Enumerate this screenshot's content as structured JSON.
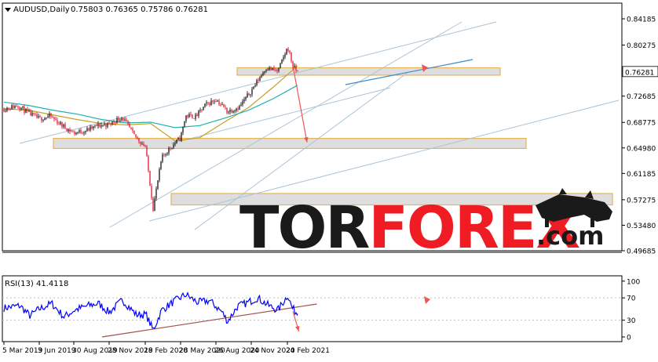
{
  "header": {
    "symbol_line": "AUDUSD,Daily",
    "ohlc_line": "0.75803 0.76365 0.75786 0.76281"
  },
  "price_panel": {
    "current_price_label": "0.76281",
    "y_ticks": [
      "0.84185",
      "0.80275",
      "0.76281",
      "0.72685",
      "0.68775",
      "0.64980",
      "0.61185",
      "0.57275",
      "0.53480",
      "0.49685"
    ]
  },
  "rsi_panel": {
    "label": "RSI(13) 41.4118",
    "y_ticks": [
      "100",
      "70",
      "30",
      "0"
    ]
  },
  "x_axis": {
    "ticks": [
      "5 Mar 2019",
      "3 Jun 2019",
      "30 Aug 2019",
      "28 Nov 2019",
      "28 Feb 2020",
      "28 May 2020",
      "26 Aug 2020",
      "24 Nov 2020",
      "24 Feb 2021"
    ]
  },
  "watermark": {
    "text_dark": "TOR",
    "text_red": "FOREX",
    "text_suffix": ".com"
  },
  "colors": {
    "candle_up": "#000000",
    "candle_down": "#e0001b",
    "ma_fast": "#c8a020",
    "ma_slow": "#20b0b0",
    "zone_border": "#e6b45a",
    "zone_fill": "#d8d8d8",
    "channel": "#aac4d8",
    "rsi_line": "#0000ff",
    "rsi_trend": "#a05050",
    "forecast_arrow": "#ee5555",
    "wm_dark": "#1a1a1a",
    "wm_red": "#ef1c24"
  },
  "chart_data": [
    {
      "type": "candlestick",
      "symbol": "AUDUSD",
      "timeframe": "Daily",
      "last_ohlc": {
        "open": 0.75803,
        "high": 0.76365,
        "low": 0.75786,
        "close": 0.76281
      },
      "x_tick_labels": [
        "5 Mar 2019",
        "3 Jun 2019",
        "30 Aug 2019",
        "28 Nov 2019",
        "28 Feb 2020",
        "28 May 2020",
        "26 Aug 2020",
        "24 Nov 2020",
        "24 Feb 2021"
      ],
      "close_path": [
        {
          "date": "2019-03-05",
          "close": 0.708
        },
        {
          "date": "2019-04-10",
          "close": 0.713
        },
        {
          "date": "2019-05-05",
          "close": 0.702
        },
        {
          "date": "2019-06-03",
          "close": 0.693
        },
        {
          "date": "2019-07-01",
          "close": 0.697
        },
        {
          "date": "2019-08-01",
          "close": 0.683
        },
        {
          "date": "2019-08-30",
          "close": 0.672
        },
        {
          "date": "2019-10-01",
          "close": 0.676
        },
        {
          "date": "2019-10-30",
          "close": 0.683
        },
        {
          "date": "2019-11-28",
          "close": 0.685
        },
        {
          "date": "2019-12-31",
          "close": 0.696
        },
        {
          "date": "2020-01-31",
          "close": 0.668
        },
        {
          "date": "2020-02-28",
          "close": 0.652
        },
        {
          "date": "2020-03-19",
          "close": 0.56
        },
        {
          "date": "2020-04-10",
          "close": 0.635
        },
        {
          "date": "2020-05-01",
          "close": 0.65
        },
        {
          "date": "2020-05-28",
          "close": 0.665
        },
        {
          "date": "2020-06-10",
          "close": 0.698
        },
        {
          "date": "2020-07-05",
          "close": 0.696
        },
        {
          "date": "2020-07-31",
          "close": 0.714
        },
        {
          "date": "2020-08-26",
          "close": 0.722
        },
        {
          "date": "2020-09-25",
          "close": 0.704
        },
        {
          "date": "2020-10-25",
          "close": 0.711
        },
        {
          "date": "2020-11-24",
          "close": 0.735
        },
        {
          "date": "2020-12-31",
          "close": 0.769
        },
        {
          "date": "2021-01-31",
          "close": 0.764
        },
        {
          "date": "2021-02-25",
          "close": 0.8
        },
        {
          "date": "2021-03-10",
          "close": 0.771
        },
        {
          "date": "2021-03-22",
          "close": 0.76281
        }
      ],
      "moving_averages": [
        {
          "color": "#c8a020",
          "values": [
            0.708,
            0.706,
            0.699,
            0.692,
            0.686,
            0.684,
            0.686,
            0.66,
            0.665,
            0.688,
            0.71,
            0.74,
            0.772
          ]
        },
        {
          "color": "#20b0b0",
          "values": [
            0.718,
            0.713,
            0.706,
            0.7,
            0.692,
            0.687,
            0.688,
            0.68,
            0.683,
            0.694,
            0.706,
            0.723,
            0.743
          ]
        }
      ],
      "support_resistance_zones": [
        {
          "low": 0.758,
          "high": 0.769
        },
        {
          "low": 0.649,
          "high": 0.664
        },
        {
          "low": 0.565,
          "high": 0.582
        }
      ],
      "forecast_arrows": [
        {
          "from_date": "2021-03-10",
          "from": 0.772,
          "to_date": "2021-04-15",
          "to": 0.658
        }
      ]
    },
    {
      "type": "line",
      "name": "RSI(13)",
      "last_value": 41.4118,
      "ylim": [
        0,
        100
      ],
      "y_ticks": [
        100,
        70,
        30,
        0
      ],
      "path": [
        {
          "date": "2019-03-05",
          "value": 52
        },
        {
          "date": "2019-04-15",
          "value": 56
        },
        {
          "date": "2019-05-10",
          "value": 38
        },
        {
          "date": "2019-06-03",
          "value": 50
        },
        {
          "date": "2019-07-05",
          "value": 60
        },
        {
          "date": "2019-08-05",
          "value": 36
        },
        {
          "date": "2019-09-01",
          "value": 48
        },
        {
          "date": "2019-10-05",
          "value": 56
        },
        {
          "date": "2019-11-01",
          "value": 60
        },
        {
          "date": "2019-11-28",
          "value": 44
        },
        {
          "date": "2020-01-01",
          "value": 66
        },
        {
          "date": "2020-02-05",
          "value": 40
        },
        {
          "date": "2020-03-01",
          "value": 40
        },
        {
          "date": "2020-03-19",
          "value": 12
        },
        {
          "date": "2020-04-10",
          "value": 48
        },
        {
          "date": "2020-05-10",
          "value": 63
        },
        {
          "date": "2020-06-10",
          "value": 76
        },
        {
          "date": "2020-07-10",
          "value": 62
        },
        {
          "date": "2020-08-10",
          "value": 65
        },
        {
          "date": "2020-09-10",
          "value": 45
        },
        {
          "date": "2020-09-25",
          "value": 28
        },
        {
          "date": "2020-10-20",
          "value": 55
        },
        {
          "date": "2020-11-10",
          "value": 60
        },
        {
          "date": "2020-12-10",
          "value": 70
        },
        {
          "date": "2021-01-10",
          "value": 55
        },
        {
          "date": "2021-01-31",
          "value": 48
        },
        {
          "date": "2021-02-25",
          "value": 75
        },
        {
          "date": "2021-03-08",
          "value": 52
        },
        {
          "date": "2021-03-22",
          "value": 41.4118
        }
      ],
      "trendline": {
        "from_date": "2019-11-10",
        "from": 0,
        "to_date": "2021-05-10",
        "to": 59
      },
      "forecast_arrows": [
        {
          "from_date": "2021-03-10",
          "from": 46,
          "to_date": "2021-03-25",
          "to": 10
        }
      ]
    }
  ]
}
